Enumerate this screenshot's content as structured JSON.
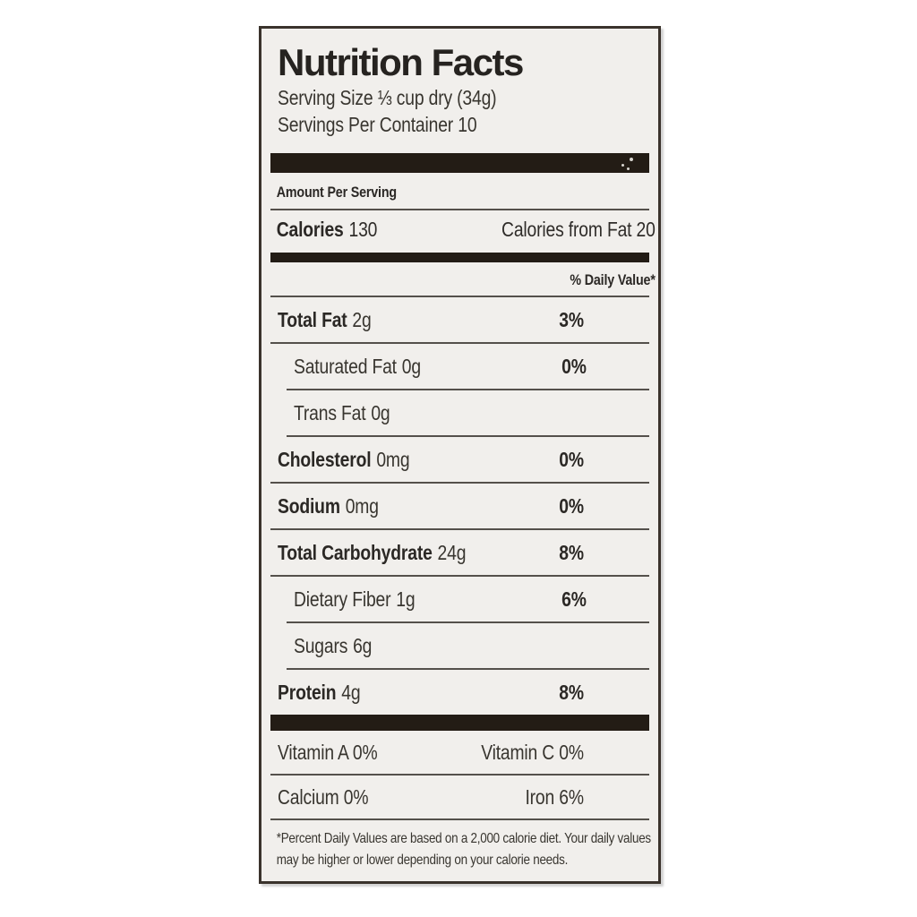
{
  "label": {
    "title": "Nutrition Facts",
    "serving_size": "Serving Size ⅓ cup dry (34g)",
    "servings_per_container": "Servings Per Container 10",
    "amount_per_serving": "Amount Per Serving",
    "calories_label": "Calories",
    "calories_value": "130",
    "calories_from_fat": "Calories from Fat 20",
    "daily_value_header": "% Daily Value*",
    "nutrients": [
      {
        "name": "Total Fat",
        "amount": "2g",
        "dv": "3%"
      },
      {
        "name": "Saturated Fat",
        "amount": "0g",
        "dv": "0%"
      },
      {
        "name": "Trans Fat",
        "amount": "0g",
        "dv": ""
      },
      {
        "name": "Cholesterol",
        "amount": "0mg",
        "dv": "0%"
      },
      {
        "name": "Sodium",
        "amount": "0mg",
        "dv": "0%"
      },
      {
        "name": "Total Carbohydrate",
        "amount": "24g",
        "dv": "8%"
      },
      {
        "name": "Dietary Fiber",
        "amount": "1g",
        "dv": "6%"
      },
      {
        "name": "Sugars",
        "amount": "6g",
        "dv": ""
      },
      {
        "name": "Protein",
        "amount": "4g",
        "dv": "8%"
      }
    ],
    "vitamins": [
      {
        "left": "Vitamin A  0%",
        "right": "Vitamin C  0%"
      },
      {
        "left": "Calcium  0%",
        "right": "Iron  6%"
      }
    ],
    "footnote": "*Percent Daily Values are based on a 2,000 calorie diet. Your daily values may be higher or lower depending on your calorie needs."
  },
  "colors": {
    "label_background": "#f1efec",
    "border": "#3a332c",
    "thick_bar": "#231c15",
    "thin_rule": "#54504b",
    "text": "#2f2c29",
    "page_background": "#ffffff"
  }
}
